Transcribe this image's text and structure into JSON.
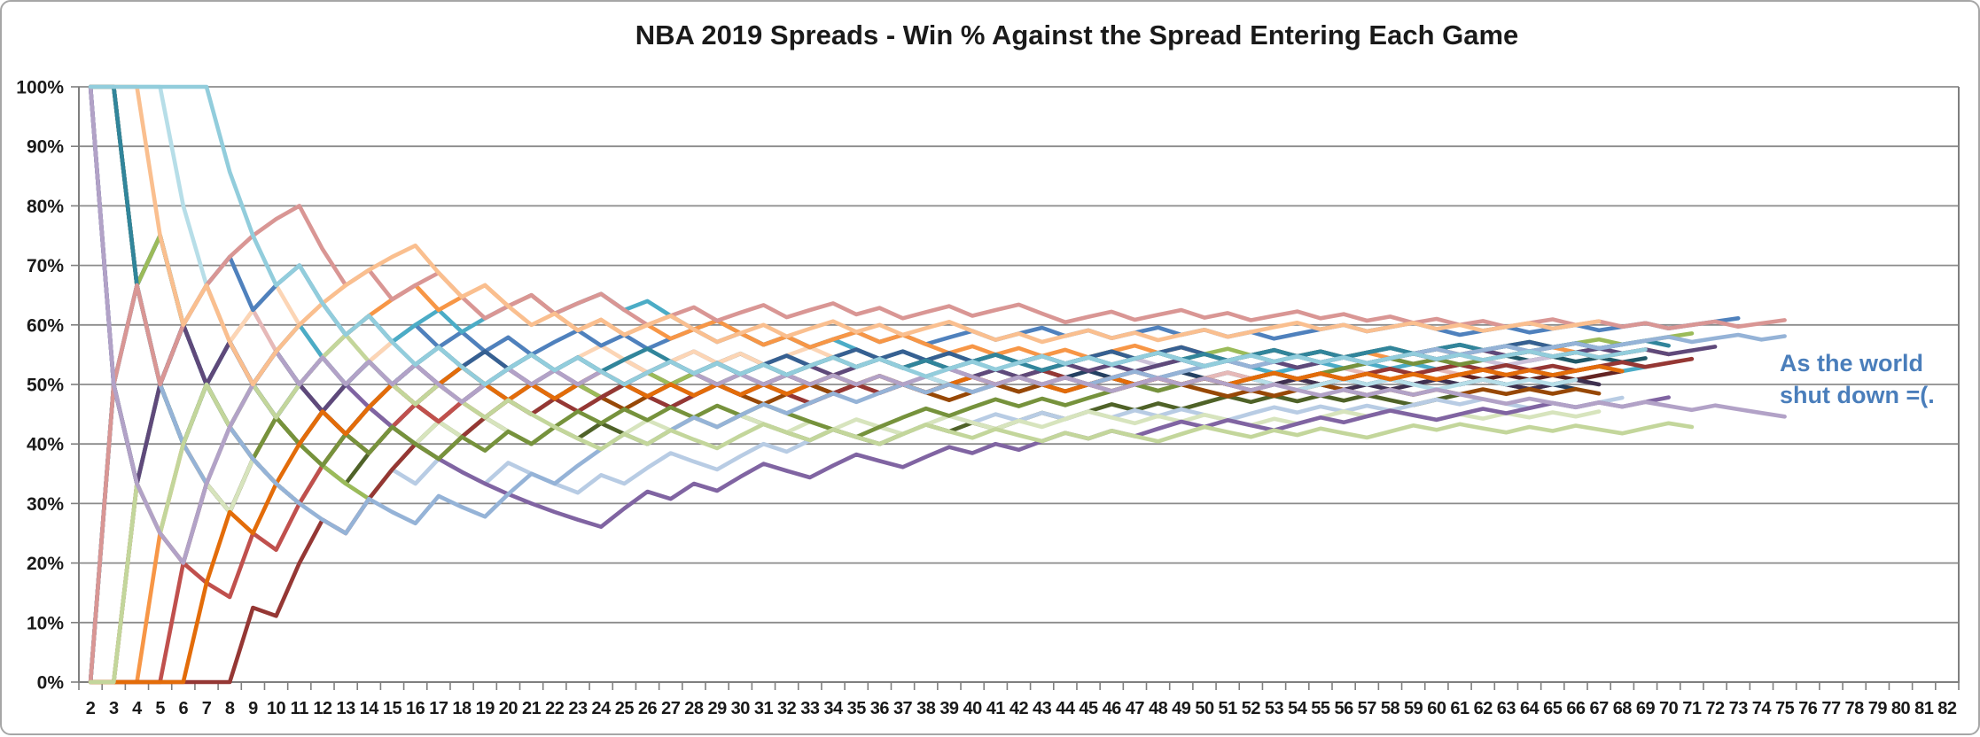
{
  "chart_data": {
    "type": "line",
    "title": "NBA 2019 Spreads - Win % Against the Spread Entering Each Game",
    "x_axis": {
      "min": 2,
      "max": 82,
      "step": 1,
      "ticks": [
        2,
        3,
        4,
        5,
        6,
        7,
        8,
        9,
        10,
        11,
        12,
        13,
        14,
        15,
        16,
        17,
        18,
        19,
        20,
        21,
        22,
        23,
        24,
        25,
        26,
        27,
        28,
        29,
        30,
        31,
        32,
        33,
        34,
        35,
        36,
        37,
        38,
        39,
        40,
        41,
        42,
        43,
        44,
        45,
        46,
        47,
        48,
        49,
        50,
        51,
        52,
        53,
        54,
        55,
        56,
        57,
        58,
        59,
        60,
        61,
        62,
        63,
        64,
        65,
        66,
        67,
        68,
        69,
        70,
        71,
        72,
        73,
        74,
        75,
        76,
        77,
        78,
        79,
        80,
        81,
        82
      ]
    },
    "y_axis": {
      "min": 0,
      "max": 100,
      "step": 10,
      "tick_labels": [
        "0%",
        "10%",
        "20%",
        "30%",
        "40%",
        "50%",
        "60%",
        "70%",
        "80%",
        "90%",
        "100%"
      ]
    },
    "grid": true,
    "legend": "none",
    "annotation": {
      "line1": "As the world",
      "line2": "shut down =(.",
      "color": "#4a7ebb"
    },
    "value_definition": "Each line is one team's win % against the spread entering game n: ATS wins in first n-1 games divided by (n-1). Lines are encoded below as per-game ATS results (W/L); the plotted percentages derive cumulatively from them.",
    "series": [
      {
        "id": "series-01",
        "color": "#244061",
        "ats_results": "WWLWLLWLLLWLWWLWWLWLLWLWWLWLWLWLLWWLWLWWLWLWLLWWLWLWLLWLWLWLWLLWL"
      },
      {
        "id": "series-02",
        "color": "#632423",
        "ats_results": "LLWLLWLWLLWWLWWLWWLWLWLWLWWLLWWLWLWLLWWLLWWLWLWLWLWLWLWWLLWWLWLWLWW"
      },
      {
        "id": "series-03",
        "color": "#4F6228",
        "ats_results": "WLLWLLLWLLWLWWLWLWLLWLWLLWWLWLLLWLLWWLWLWWLWWLWLWWLWLWLWLLWW"
      },
      {
        "id": "series-04",
        "color": "#3F3151",
        "ats_results": "LWLWWLLWLWLLWLWWLWLLWWLWLLWWLWLWLWWLLWLWWLLWWLWLWLLWWLLWLWWLWLLWWL"
      },
      {
        "id": "series-05",
        "color": "#205867",
        "ats_results": "WWLWLLWLWLWLWLWWLWLWLWLWLWWLWLWLWWLLWLWWLWLWWLWLLWWLWLWLWWLWLWLWLWLW"
      },
      {
        "id": "series-06",
        "color": "#974806",
        "ats_results": "LLWWLWLLWLWLWWLLWWLWLWLLWWLWLLWWLWLWLLWWLWLWLWLWLLWLWWLLWLWLWLWLWL"
      },
      {
        "id": "series-07",
        "color": "#B8CCE4",
        "ats_results": "WLLWLLWLLLWLLWLWLLWLLLWLWWLLWWLWWLWLWWLWLWLWLWLWLLWWLWLWLWWLWLLWLWW"
      },
      {
        "id": "series-08",
        "color": "#E6B9B8",
        "ats_results": "LWWLWWLWLWLLWLWLLWWLWLWLWWLWLLLWWLWLWWLLWLWLWWLLWWLWLWWLWLWLWLWLW"
      },
      {
        "id": "series-09",
        "color": "#D7E4BD",
        "ats_results": "LLWLWLLWLLWWLWLWLWLLWLLWWLWLWLLWLWLLWWLLWLWWLLWLWLLWLWWLWLLWLWLWLW"
      },
      {
        "id": "series-10",
        "color": "#CCC1D9",
        "ats_results": "WWLWLWLLWLWLWWLWLWLWLWLWLWWLLWWLWLWWLWLLWWLWLWLWWLLWLWWLWLWLWLWW"
      },
      {
        "id": "series-11",
        "color": "#B7DEE8",
        "ats_results": "WWWWLLLLLWLWWLLWLWLWLWLWWLLWWLLWWLWLWLLWWLWLLWLWWLWLLWWLWLLWWLWLW"
      },
      {
        "id": "series-12",
        "color": "#FCD5B5",
        "ats_results": "LWLWWWLWWLWLLWWLWLWLLWWLLWWLWLWWLWLWLWWLLWLWWLWWLLWWLWLWWLWLLWWLWLW"
      },
      {
        "id": "series-13",
        "color": "#4F81BD",
        "ats_results": "WLWWLWWLWWLLWLWLWLWLWWLWLWWLWLWLWWLWLWWLWWLWLWWLWLWLWWWLWWLLWWLWWLWWLWWW"
      },
      {
        "id": "series-14",
        "color": "#C0504D",
        "ats_results": "LLLLWLLWLWWWLWWLWLWWLWLWWLLWLWLLWWLWLWWLWLWLLWWLWLWWLWLWLWLWWLWLWW"
      },
      {
        "id": "series-15",
        "color": "#9BBB59",
        "ats_results": "LWWWLLLWLLLLLWWLWWWLWWLWWLWLWWLWWLWLWWLWLWLWWLWLWWLWLWLWWLWWLWWLWWLWWW"
      },
      {
        "id": "series-16",
        "color": "#8064A2",
        "ats_results": "WLWLWLWLWLLWLLLLLLLLLLLWWLWLWWLLWWLLWWLWLWWLWLWWLWLLWWLWWLLWWLWWLWLWW"
      },
      {
        "id": "series-17",
        "color": "#4BACC6",
        "ats_results": "LWLWWLWLWWLWWLWWLWWWLWWLWLLWLLWLWLLWLWLLWWLWLLWWLWLLWWLWLWLWLWLLWWLW"
      },
      {
        "id": "series-18",
        "color": "#F79646",
        "ats_results": "LLLWWLWWWLWWWWWLWWLWLLWLWLWWLLWLWWLWLLWLWLWLWWLWLLWWLWLWLWWLWLWWLLWWL"
      },
      {
        "id": "series-19",
        "color": "#366092",
        "ats_results": "WWLLWLWLLWLWWLWLWWLWLWLLWWLWLWWLWWLWLWLWLWLWWLWWLLWWLWLWWLWWLWWLWLW"
      },
      {
        "id": "series-20",
        "color": "#953734",
        "ats_results": "LLLLLLLWLWWLWWWLWWWLWLWWLLWWLWLLWWLWLWWLWWLLWWLLWLWWLWLWWLWWLWLWLWWLWW"
      },
      {
        "id": "series-21",
        "color": "#76923C",
        "ats_results": "WWLLLWLLWLLWLWLLWLWLWWLWLWLWLWLLLLWWWLWWLWLWWWLWWLWWLWWWWLWLWWWLWW"
      },
      {
        "id": "series-22",
        "color": "#5F497A",
        "ats_results": "LWLWWLWLWLLWWLWLLWWLWLWLWWLWLWLWLWWLWLLWLWWLWLWWLWLWLWWLWWLWWLWLWWLWLWW"
      },
      {
        "id": "series-23",
        "color": "#31859B",
        "ats_results": "WWLLLWLWWLWLWLWWLLWWLWLWWLLWLWLWWLWLWLWWLLWWLWWLWLWWLWLWWLWWLWLWWLWWL"
      },
      {
        "id": "series-24",
        "color": "#E36C09",
        "ats_results": "LLLLLWWLWWWLWWLWWLLWLWWLLWLWLWLWWLWLLWWLWLLWWLWLWLWWLWLWLWLWWLWLWWL"
      },
      {
        "id": "series-25",
        "color": "#95B3D7",
        "ats_results": "LWWLLLWLLLLLWLLWLLWWLWWWLWWLWWLWWLWWLWLWWLWLWWLWWWLWWLWLWWWLWWLWWLWWWLWWLW"
      },
      {
        "id": "series-26",
        "color": "#D99694",
        "ats_results": "LWWLWWWWWWLLWLWWLLWWLWWLLWWLWWLWWLWLWWLWWLLWWLWWLWLWWLWLWLWLWLWWLWLWLWWLWW"
      },
      {
        "id": "series-27",
        "color": "#C3D69B",
        "ats_results": "LLWLWWLWLWWWLLLWLLWLLLLWLWLLWWLLWLLWWLLWLLWLWLLWWLLWLWLLWWLWLLWLWLLWWL"
      },
      {
        "id": "series-28",
        "color": "#B2A2C7",
        "ats_results": "WLLLLWWWWLWLWLWLLWWLWLWLWWLLWLWLWLWLWWLLWLWLLWWLWLLWLLWLWLWLLLWLLWLWLLWLLL"
      },
      {
        "id": "series-29",
        "color": "#FABF8F",
        "ats_results": "WWWLLWLLWWWWWWWLLWLLWLWLWWLLWWLWWLWLWWLLWLWWLWLWWLWWWLWLWWLWLWWLWW"
      },
      {
        "id": "series-30",
        "color": "#92CDDC",
        "ats_results": "WWWWWWLLLWLLWLLWLLWWLWLLWWLWLWLWWLWLLWWLWWLWLWWLLWWLWLWLWWLWLWWLWLWW"
      }
    ]
  }
}
